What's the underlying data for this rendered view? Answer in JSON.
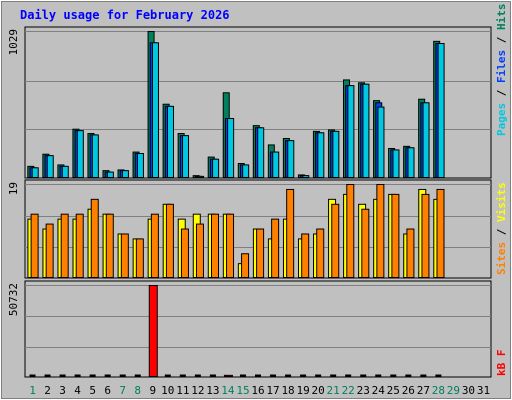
{
  "title": "Daily usage for February 2026",
  "colors": {
    "hits": "#00805c",
    "files": "#0040ff",
    "pages": "#00c8e0",
    "visits": "#ffff00",
    "sites": "#ff8000",
    "kbytes": "#ff0000",
    "plot_bg": "#c0c0c0",
    "title": "#0000ff",
    "weekday": "#000000",
    "weekend": "#00805c"
  },
  "legend": {
    "top": [
      {
        "text": "Pages",
        "color_key": "pages"
      },
      {
        "text": " / ",
        "color_key": "weekday"
      },
      {
        "text": "Files",
        "color_key": "files"
      },
      {
        "text": " / ",
        "color_key": "weekday"
      },
      {
        "text": "Hits",
        "color_key": "hits"
      }
    ],
    "middle": [
      {
        "text": "Sites",
        "color_key": "sites"
      },
      {
        "text": " / ",
        "color_key": "weekday"
      },
      {
        "text": "Visits",
        "color_key": "visits"
      }
    ],
    "bottom": [
      {
        "text": "kB F",
        "color_key": "kbytes"
      }
    ]
  },
  "chart_data": {
    "type": "bar",
    "categories": [
      "1",
      "2",
      "3",
      "4",
      "5",
      "6",
      "7",
      "8",
      "9",
      "10",
      "11",
      "12",
      "13",
      "14",
      "15",
      "16",
      "17",
      "18",
      "19",
      "20",
      "21",
      "22",
      "23",
      "24",
      "25",
      "26",
      "27",
      "28",
      "29",
      "30",
      "31"
    ],
    "weekend_days": [
      "1",
      "7",
      "8",
      "14",
      "15",
      "21",
      "22",
      "28",
      "29"
    ],
    "panels": [
      {
        "id": "hits-files-pages",
        "max_label": "1029",
        "ymax": 1029,
        "series": [
          {
            "name": "Hits",
            "color_key": "hits",
            "values": [
              85,
              170,
              95,
              345,
              315,
              55,
              60,
              185,
              1029,
              520,
              315,
              20,
              150,
              600,
              105,
              370,
              235,
              280,
              25,
              330,
              340,
              690,
              670,
              545,
              210,
              225,
              555,
              960,
              null,
              null,
              null
            ]
          },
          {
            "name": "Files",
            "color_key": "files",
            "values": [
              75,
              160,
              85,
              335,
              305,
              45,
              55,
              175,
              950,
              505,
              300,
              15,
              135,
              420,
              95,
              355,
              185,
              265,
              20,
              320,
              330,
              650,
              660,
              530,
              200,
              215,
              530,
              945,
              null,
              null,
              null
            ]
          },
          {
            "name": "Pages",
            "color_key": "pages",
            "values": [
              75,
              160,
              85,
              335,
              305,
              45,
              55,
              175,
              950,
              505,
              300,
              15,
              135,
              420,
              95,
              355,
              185,
              265,
              20,
              320,
              330,
              650,
              660,
              500,
              200,
              215,
              530,
              945,
              null,
              null,
              null
            ]
          }
        ]
      },
      {
        "id": "visits-sites",
        "max_label": "19",
        "ymax": 19,
        "series": [
          {
            "name": "Visits",
            "color_key": "visits",
            "values": [
              12,
              10,
              12,
              12,
              14,
              13,
              9,
              8,
              12,
              15,
              12,
              13,
              13,
              13,
              3,
              10,
              8,
              12,
              8,
              9,
              16,
              17,
              15,
              16,
              17,
              9,
              18,
              16,
              null,
              null,
              null
            ]
          },
          {
            "name": "Sites",
            "color_key": "sites",
            "values": [
              13,
              11,
              13,
              13,
              16,
              13,
              9,
              8,
              13,
              15,
              10,
              11,
              13,
              13,
              5,
              10,
              12,
              18,
              9,
              10,
              15,
              19,
              14,
              19,
              17,
              10,
              17,
              18,
              null,
              null,
              null
            ]
          }
        ]
      },
      {
        "id": "kbytes",
        "max_label": "50732",
        "ymax": 50732,
        "series": [
          {
            "name": "kB F",
            "color_key": "kbytes",
            "values": [
              0,
              0,
              0,
              0,
              0,
              0,
              0,
              0,
              50732,
              0,
              0,
              0,
              0,
              1200,
              0,
              0,
              0,
              0,
              0,
              0,
              0,
              0,
              0,
              0,
              0,
              0,
              0,
              0,
              null,
              null,
              null
            ]
          }
        ]
      }
    ]
  }
}
